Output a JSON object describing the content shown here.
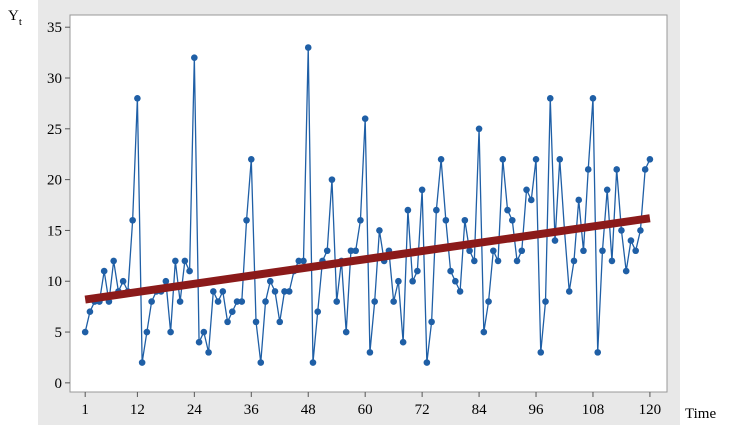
{
  "chart_data": {
    "type": "line",
    "ylabel": "Y",
    "ylabel_subscript": "t",
    "xlabel": "Time",
    "xlim": [
      -2.2,
      123.6
    ],
    "ylim": [
      -0.9,
      36.2
    ],
    "xticks": [
      1,
      12,
      24,
      36,
      48,
      60,
      72,
      84,
      96,
      108,
      120
    ],
    "yticks": [
      0,
      5,
      10,
      15,
      20,
      25,
      30,
      35
    ],
    "series": [
      {
        "color": "#1f5fa6",
        "markers": true,
        "x": [
          1,
          2,
          3,
          4,
          5,
          6,
          7,
          8,
          9,
          10,
          11,
          12,
          13,
          14,
          15,
          16,
          17,
          18,
          19,
          20,
          21,
          22,
          23,
          24,
          25,
          26,
          27,
          28,
          29,
          30,
          31,
          32,
          33,
          34,
          35,
          36,
          37,
          38,
          39,
          40,
          41,
          42,
          43,
          44,
          45,
          46,
          47,
          48,
          49,
          50,
          51,
          52,
          53,
          54,
          55,
          56,
          57,
          58,
          59,
          60,
          61,
          62,
          63,
          64,
          65,
          66,
          67,
          68,
          69,
          70,
          71,
          72,
          73,
          74,
          75,
          76,
          77,
          78,
          79,
          80,
          81,
          82,
          83,
          84,
          85,
          86,
          87,
          88,
          89,
          90,
          91,
          92,
          93,
          94,
          95,
          96,
          97,
          98,
          99,
          100,
          101,
          102,
          103,
          104,
          105,
          106,
          107,
          108,
          109,
          110,
          111,
          112,
          113,
          114,
          115,
          116,
          117,
          118,
          119,
          120
        ],
        "values": [
          5,
          7,
          8,
          8,
          11,
          8,
          12,
          9,
          10,
          9,
          16,
          28,
          2,
          5,
          8,
          9,
          9,
          10,
          5,
          12,
          8,
          12,
          11,
          32,
          4,
          5,
          3,
          9,
          8,
          9,
          6,
          7,
          8,
          8,
          16,
          22,
          6,
          2,
          8,
          10,
          9,
          6,
          9,
          9,
          11,
          12,
          12,
          33,
          2,
          7,
          12,
          13,
          20,
          8,
          12,
          5,
          13,
          13,
          16,
          26,
          3,
          8,
          15,
          12,
          13,
          8,
          10,
          4,
          17,
          10,
          11,
          19,
          2,
          6,
          17,
          22,
          16,
          11,
          10,
          9,
          16,
          13,
          12,
          25,
          5,
          8,
          13,
          12,
          22,
          17,
          16,
          12,
          13,
          19,
          18,
          22,
          3,
          8,
          28,
          14,
          22,
          15,
          9,
          12,
          18,
          13,
          21,
          28,
          3,
          13,
          19,
          12,
          21,
          15,
          11,
          14,
          13,
          15,
          21,
          22
        ]
      },
      {
        "color": "#8b1a1a",
        "markers": false,
        "x": [
          1,
          120
        ],
        "values": [
          8.2,
          16.2
        ]
      }
    ]
  }
}
